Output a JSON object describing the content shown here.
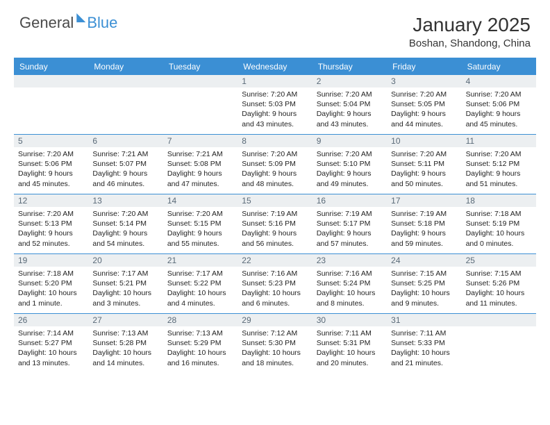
{
  "logo": {
    "part1": "General",
    "part2": "Blue"
  },
  "title": "January 2025",
  "location": "Boshan, Shandong, China",
  "colors": {
    "header_bg": "#3b8fd4",
    "daynum_bg": "#eceff1",
    "daynum_fg": "#5a6a78",
    "text": "#222222",
    "border": "#3b8fd4"
  },
  "typography": {
    "title_fontsize": 28,
    "location_fontsize": 15,
    "header_fontsize": 12,
    "daynum_fontsize": 12,
    "body_fontsize": 10.5
  },
  "dayHeaders": [
    "Sunday",
    "Monday",
    "Tuesday",
    "Wednesday",
    "Thursday",
    "Friday",
    "Saturday"
  ],
  "weeks": [
    [
      {
        "n": "",
        "sr": "",
        "ss": "",
        "dl": ""
      },
      {
        "n": "",
        "sr": "",
        "ss": "",
        "dl": ""
      },
      {
        "n": "",
        "sr": "",
        "ss": "",
        "dl": ""
      },
      {
        "n": "1",
        "sr": "7:20 AM",
        "ss": "5:03 PM",
        "dl": "9 hours and 43 minutes."
      },
      {
        "n": "2",
        "sr": "7:20 AM",
        "ss": "5:04 PM",
        "dl": "9 hours and 43 minutes."
      },
      {
        "n": "3",
        "sr": "7:20 AM",
        "ss": "5:05 PM",
        "dl": "9 hours and 44 minutes."
      },
      {
        "n": "4",
        "sr": "7:20 AM",
        "ss": "5:06 PM",
        "dl": "9 hours and 45 minutes."
      }
    ],
    [
      {
        "n": "5",
        "sr": "7:20 AM",
        "ss": "5:06 PM",
        "dl": "9 hours and 45 minutes."
      },
      {
        "n": "6",
        "sr": "7:21 AM",
        "ss": "5:07 PM",
        "dl": "9 hours and 46 minutes."
      },
      {
        "n": "7",
        "sr": "7:21 AM",
        "ss": "5:08 PM",
        "dl": "9 hours and 47 minutes."
      },
      {
        "n": "8",
        "sr": "7:20 AM",
        "ss": "5:09 PM",
        "dl": "9 hours and 48 minutes."
      },
      {
        "n": "9",
        "sr": "7:20 AM",
        "ss": "5:10 PM",
        "dl": "9 hours and 49 minutes."
      },
      {
        "n": "10",
        "sr": "7:20 AM",
        "ss": "5:11 PM",
        "dl": "9 hours and 50 minutes."
      },
      {
        "n": "11",
        "sr": "7:20 AM",
        "ss": "5:12 PM",
        "dl": "9 hours and 51 minutes."
      }
    ],
    [
      {
        "n": "12",
        "sr": "7:20 AM",
        "ss": "5:13 PM",
        "dl": "9 hours and 52 minutes."
      },
      {
        "n": "13",
        "sr": "7:20 AM",
        "ss": "5:14 PM",
        "dl": "9 hours and 54 minutes."
      },
      {
        "n": "14",
        "sr": "7:20 AM",
        "ss": "5:15 PM",
        "dl": "9 hours and 55 minutes."
      },
      {
        "n": "15",
        "sr": "7:19 AM",
        "ss": "5:16 PM",
        "dl": "9 hours and 56 minutes."
      },
      {
        "n": "16",
        "sr": "7:19 AM",
        "ss": "5:17 PM",
        "dl": "9 hours and 57 minutes."
      },
      {
        "n": "17",
        "sr": "7:19 AM",
        "ss": "5:18 PM",
        "dl": "9 hours and 59 minutes."
      },
      {
        "n": "18",
        "sr": "7:18 AM",
        "ss": "5:19 PM",
        "dl": "10 hours and 0 minutes."
      }
    ],
    [
      {
        "n": "19",
        "sr": "7:18 AM",
        "ss": "5:20 PM",
        "dl": "10 hours and 1 minute."
      },
      {
        "n": "20",
        "sr": "7:17 AM",
        "ss": "5:21 PM",
        "dl": "10 hours and 3 minutes."
      },
      {
        "n": "21",
        "sr": "7:17 AM",
        "ss": "5:22 PM",
        "dl": "10 hours and 4 minutes."
      },
      {
        "n": "22",
        "sr": "7:16 AM",
        "ss": "5:23 PM",
        "dl": "10 hours and 6 minutes."
      },
      {
        "n": "23",
        "sr": "7:16 AM",
        "ss": "5:24 PM",
        "dl": "10 hours and 8 minutes."
      },
      {
        "n": "24",
        "sr": "7:15 AM",
        "ss": "5:25 PM",
        "dl": "10 hours and 9 minutes."
      },
      {
        "n": "25",
        "sr": "7:15 AM",
        "ss": "5:26 PM",
        "dl": "10 hours and 11 minutes."
      }
    ],
    [
      {
        "n": "26",
        "sr": "7:14 AM",
        "ss": "5:27 PM",
        "dl": "10 hours and 13 minutes."
      },
      {
        "n": "27",
        "sr": "7:13 AM",
        "ss": "5:28 PM",
        "dl": "10 hours and 14 minutes."
      },
      {
        "n": "28",
        "sr": "7:13 AM",
        "ss": "5:29 PM",
        "dl": "10 hours and 16 minutes."
      },
      {
        "n": "29",
        "sr": "7:12 AM",
        "ss": "5:30 PM",
        "dl": "10 hours and 18 minutes."
      },
      {
        "n": "30",
        "sr": "7:11 AM",
        "ss": "5:31 PM",
        "dl": "10 hours and 20 minutes."
      },
      {
        "n": "31",
        "sr": "7:11 AM",
        "ss": "5:33 PM",
        "dl": "10 hours and 21 minutes."
      },
      {
        "n": "",
        "sr": "",
        "ss": "",
        "dl": ""
      }
    ]
  ],
  "labels": {
    "sunrise": "Sunrise: ",
    "sunset": "Sunset: ",
    "daylight": "Daylight: "
  }
}
